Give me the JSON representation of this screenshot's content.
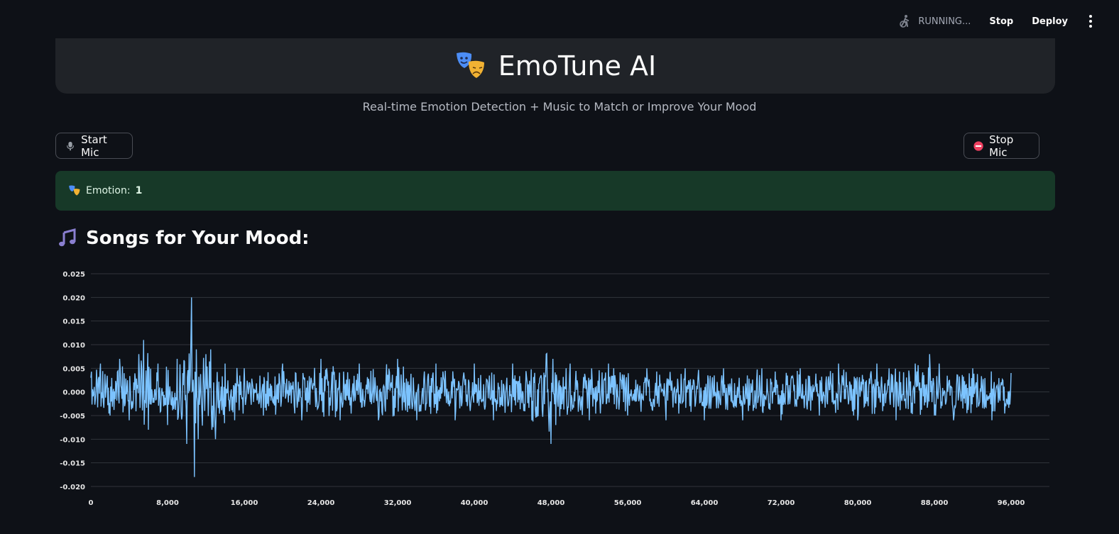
{
  "topbar": {
    "status": "RUNNING...",
    "stop_label": "Stop",
    "deploy_label": "Deploy",
    "icons": [
      "running-person-icon",
      "kebab-menu-icon"
    ]
  },
  "header": {
    "title": "EmoTune AI",
    "icon": "theater-masks-icon"
  },
  "subtitle": "Real-time Emotion Detection + Music to Match or Improve Your Mood",
  "controls": {
    "start_label": "Start Mic",
    "stop_label": "Stop Mic",
    "start_icon": "microphone-icon",
    "stop_icon": "no-entry-icon"
  },
  "emotion": {
    "label": "Emotion:",
    "value": "1",
    "icon": "theater-masks-icon"
  },
  "songs_heading": "Songs for Your Mood:",
  "colors": {
    "accent_line": "#7cc3ff",
    "alert_bg": "#173928",
    "card_bg": "#202328",
    "page_bg": "#0e1117"
  },
  "chart_data": {
    "type": "line",
    "title": "",
    "xlabel": "",
    "ylabel": "",
    "xlim": [
      0,
      96000
    ],
    "ylim": [
      -0.02,
      0.025
    ],
    "x_ticks": [
      0,
      8000,
      16000,
      24000,
      32000,
      40000,
      48000,
      56000,
      64000,
      72000,
      80000,
      88000,
      96000
    ],
    "x_tick_labels": [
      "0",
      "8,000",
      "16,000",
      "24,000",
      "32,000",
      "40,000",
      "48,000",
      "56,000",
      "64,000",
      "72,000",
      "80,000",
      "88,000",
      "96,000"
    ],
    "y_ticks": [
      0.025,
      0.02,
      0.015,
      0.01,
      0.005,
      0,
      -0.005,
      -0.01,
      -0.015,
      -0.02
    ],
    "y_tick_labels": [
      "0.025",
      "0.020",
      "0.015",
      "0.010",
      "0.005",
      "0.000",
      "-0.005",
      "-0.010",
      "-0.015",
      "-0.020"
    ],
    "grid": true,
    "series": [
      {
        "values_description_free": true,
        "x": [
          0,
          1000,
          2000,
          3000,
          4000,
          5000,
          5500,
          6000,
          7000,
          8000,
          9000,
          10000,
          10500,
          10800,
          11000,
          11200,
          12000,
          12500,
          13000,
          14000,
          15000,
          16000,
          18000,
          20000,
          22000,
          24000,
          26000,
          28000,
          30000,
          32000,
          34000,
          36000,
          38000,
          40000,
          42000,
          44000,
          46000,
          47500,
          48000,
          48200,
          48500,
          50000,
          52000,
          54000,
          56000,
          58000,
          60000,
          62000,
          64000,
          66000,
          68000,
          70000,
          72000,
          74000,
          76000,
          78000,
          80000,
          82000,
          84000,
          86000,
          87500,
          88000,
          88500,
          90000,
          92000,
          94000,
          96000
        ],
        "y": [
          0.003,
          0.006,
          -0.005,
          0.007,
          -0.006,
          0.008,
          0.011,
          -0.008,
          0.006,
          -0.007,
          0.007,
          -0.011,
          0.02,
          -0.018,
          0.009,
          -0.01,
          0.008,
          0.009,
          -0.01,
          0.006,
          -0.006,
          0.005,
          -0.005,
          0.006,
          -0.006,
          0.007,
          -0.006,
          0.006,
          -0.006,
          0.007,
          -0.006,
          0.006,
          -0.006,
          0.006,
          -0.006,
          0.006,
          -0.006,
          0.008,
          -0.011,
          0.007,
          -0.007,
          0.006,
          -0.006,
          0.006,
          -0.005,
          0.005,
          -0.006,
          0.005,
          -0.006,
          0.005,
          -0.006,
          0.005,
          -0.006,
          0.005,
          -0.005,
          0.006,
          -0.006,
          0.006,
          -0.006,
          0.006,
          0.008,
          -0.005,
          0.006,
          -0.006,
          0.005,
          -0.006,
          0.004
        ]
      }
    ]
  }
}
